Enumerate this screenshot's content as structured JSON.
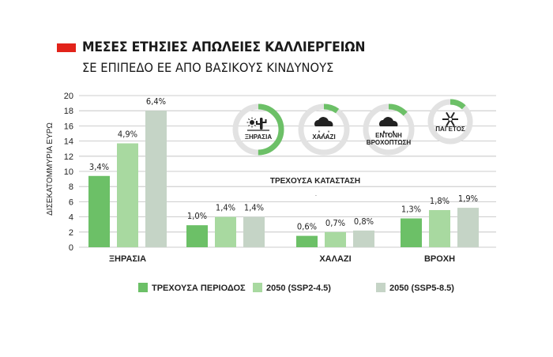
{
  "title": "ΜΕΣΕΣ ΕΤΗΣΙΕΣ ΑΠΩΛΕΙΕΣ ΚΑΛΛΙΕΡΓΕΙΩΝ",
  "subtitle": "ΣΕ ΕΠΙΠΕΔΟ ΕΕ ΑΠΟ ΒΑΣΙΚΟΥΣ ΚΙΝΔΥΝΟΥΣ",
  "colors": {
    "accent": "#e2231a",
    "s1": "#6cc067",
    "s2": "#a8d9a0",
    "s3": "#c5d4c6",
    "ring_bg": "#e2e2e2",
    "ring_fg": "#6cc067"
  },
  "chart_data": {
    "type": "bar",
    "title": "ΜΕΣΕΣ ΕΤΗΣΙΕΣ ΑΠΩΛΕΙΕΣ ΚΑΛΛΙΕΡΓΕΙΩΝ",
    "subtitle": "ΣΕ ΕΠΙΠΕΔΟ ΕΕ ΑΠΟ ΒΑΣΙΚΟΥΣ ΚΙΝΔΥΝΟΥΣ",
    "ylabel": "ΔΙΣΕΚΑΤΟΜΜΥΡΙΑ ΕΥΡΩ",
    "xlabel": "",
    "ylim": [
      0,
      20
    ],
    "yticks": [
      0,
      2,
      4,
      6,
      8,
      10,
      12,
      14,
      16,
      18,
      20
    ],
    "grid": true,
    "categories": [
      "ΞΗΡΑΣΙΑ",
      "",
      "ΧΑΛΑΖΙ",
      "ΒΡΟΧΗ"
    ],
    "series": [
      {
        "name": "ΤΡΕΧΟΥΣΑ ΠΕΡΙΟΔΟΣ",
        "values": [
          9.4,
          2.9,
          1.5,
          3.8
        ],
        "labels": [
          "3,4%",
          "1,0%",
          "0,6%",
          "1,3%"
        ]
      },
      {
        "name": "2050 (SSP2-4.5)",
        "values": [
          13.7,
          4.0,
          2.0,
          4.9
        ],
        "labels": [
          "4,9%",
          "1,4%",
          "0,7%",
          "1,8%"
        ]
      },
      {
        "name": "2050 (SSP5-8.5)",
        "values": [
          18.0,
          4.0,
          2.2,
          5.2
        ],
        "labels": [
          "6,4%",
          "1,4%",
          "0,8%",
          "1,9%"
        ]
      }
    ],
    "legend_position": "bottom",
    "inset": {
      "title": "ΤΡΕΧΟΥΣΑ ΚΑΤΑΣΤΑΣΗ",
      "rings": [
        {
          "label": "ΞΗΡΑΣΙΑ",
          "icon": "drought-icon",
          "share": 0.5
        },
        {
          "label": "ΧΑΛΑΖΙ",
          "icon": "hail-icon",
          "share": 0.1
        },
        {
          "label_lines": [
            "ΕΝΤΟΝΗ",
            "ΒΡΟΧΟΠΤΩΣΗ"
          ],
          "icon": "heavy-rain-icon",
          "share": 0.13
        },
        {
          "label": "ΠΑΓΕΤΟΣ",
          "icon": "frost-icon",
          "share": 0.12
        }
      ]
    }
  }
}
